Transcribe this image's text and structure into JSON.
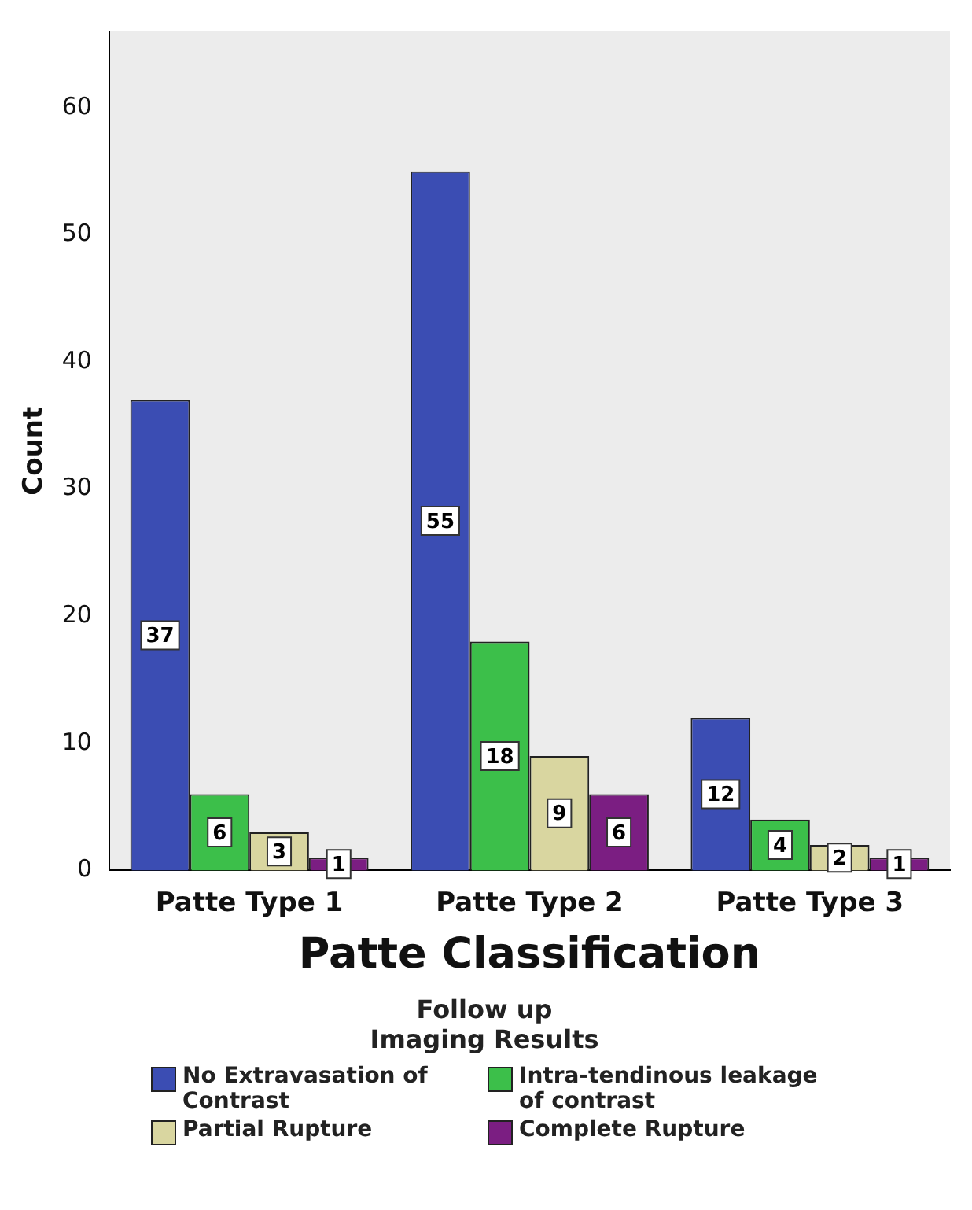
{
  "chart_data": {
    "type": "bar",
    "xlabel": "Patte Classification",
    "ylabel": "Count",
    "legend_title": "Follow up Imaging Results",
    "categories": [
      "Patte Type 1",
      "Patte Type 2",
      "Patte Type 3"
    ],
    "series": [
      {
        "name": "No Extravasation of Contrast",
        "color": "#3b4db3",
        "values": [
          37,
          55,
          12
        ]
      },
      {
        "name": "Intra-tendinous leakage of contrast",
        "color": "#3cbf4a",
        "values": [
          6,
          18,
          4
        ]
      },
      {
        "name": "Partial Rupture",
        "color": "#d9d6a0",
        "values": [
          3,
          9,
          2
        ]
      },
      {
        "name": "Complete Rupture",
        "color": "#7b1e82",
        "values": [
          1,
          6,
          1
        ]
      }
    ],
    "ylim": [
      0,
      66
    ],
    "yticks": [
      0,
      10,
      20,
      30,
      40,
      50,
      60
    ],
    "grid": false,
    "legend": "bottom",
    "data_labels": true
  }
}
